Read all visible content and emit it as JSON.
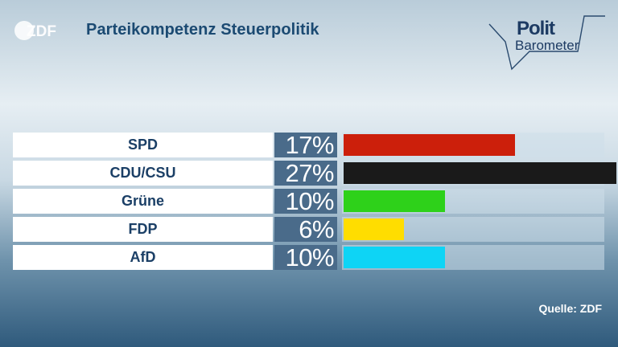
{
  "header": {
    "broadcaster": "ZDF",
    "title": "Parteikompetenz Steuerpolitik",
    "brand_word1": "Polit",
    "brand_word2": "Barometer"
  },
  "footer": {
    "source": "Quelle: ZDF"
  },
  "chart_data": {
    "type": "bar",
    "orientation": "horizontal",
    "title": "Parteikompetenz Steuerpolitik",
    "categories": [
      "SPD",
      "CDU/CSU",
      "Grüne",
      "FDP",
      "AfD"
    ],
    "values": [
      17,
      27,
      10,
      6,
      10
    ],
    "value_labels": [
      "17%",
      "27%",
      "10%",
      "6%",
      "10%"
    ],
    "unit": "%",
    "xlim": [
      0,
      27
    ],
    "colors": [
      "#cc1f0b",
      "#1a1a1a",
      "#2ed11a",
      "#ffdd00",
      "#0ed4f5"
    ],
    "grid": false,
    "legend": "none"
  }
}
